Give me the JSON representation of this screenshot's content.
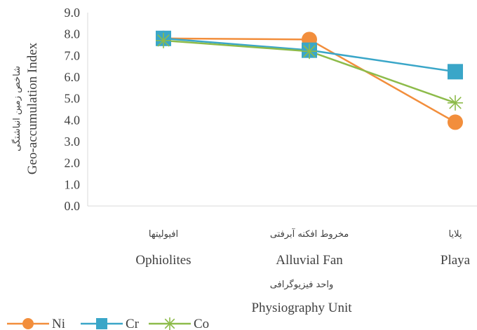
{
  "chart_data": {
    "type": "line",
    "categories": [
      {
        "fa": "افیولیتها",
        "en": "Ophiolites"
      },
      {
        "fa": "مخروط افکنه آبرفتی",
        "en": "Alluvial Fan"
      },
      {
        "fa": "پلایا",
        "en": "Playa"
      }
    ],
    "series": [
      {
        "name": "Ni",
        "values": [
          7.8,
          7.75,
          3.9
        ],
        "color": "#f28e3c",
        "marker": "circle"
      },
      {
        "name": "Cr",
        "values": [
          7.8,
          7.25,
          6.25
        ],
        "color": "#3aa6c8",
        "marker": "square"
      },
      {
        "name": "Co",
        "values": [
          7.7,
          7.2,
          4.8
        ],
        "color": "#8dbb4a",
        "marker": "asterisk"
      }
    ],
    "yticks": [
      "0.0",
      "1.0",
      "2.0",
      "3.0",
      "4.0",
      "5.0",
      "6.0",
      "7.0",
      "8.0",
      "9.0"
    ],
    "ylim": [
      0,
      9
    ],
    "ylabel_fa": "شاخص زمین انباشتگی",
    "ylabel_en": "Geo-accumulation Index",
    "xlabel_fa": "واحد فیزیوگرافی",
    "xlabel_en": "Physiography Unit",
    "legend_position": "bottom-left",
    "grid": false
  }
}
